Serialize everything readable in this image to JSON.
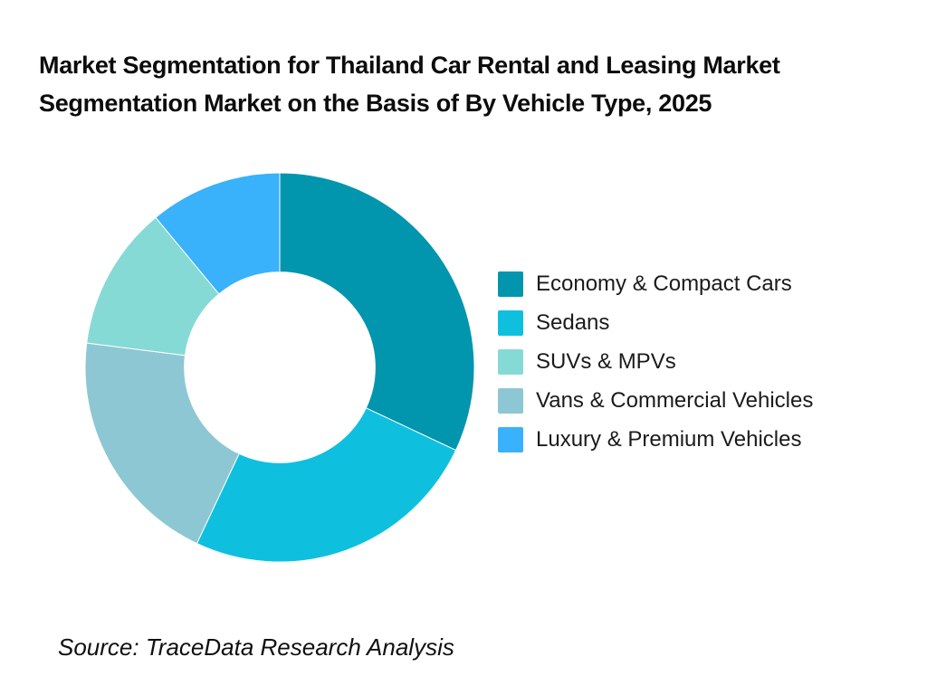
{
  "header": {
    "title_line1": "Market Segmentation for Thailand Car Rental and Leasing Market",
    "title_line2": "Segmentation Market on the Basis of By Vehicle Type, 2025"
  },
  "footer": {
    "source": "Source: TraceData Research Analysis"
  },
  "colors": {
    "background": "#ffffff",
    "title_text": "#0c0c0c",
    "legend_text": "#1b1b1b",
    "slice_divider": "#ffffff"
  },
  "chart_data": {
    "type": "pie",
    "subtype": "donut",
    "title": "Market Segmentation for Thailand Car Rental and Leasing Market Segmentation Market on the Basis of By Vehicle Type, 2025",
    "unit": "percent (estimated from segment angles; no data labels shown)",
    "segments": [
      {
        "label": "Economy & Compact Cars",
        "value": 32,
        "color": "#0295AE"
      },
      {
        "label": "Sedans",
        "value": 25,
        "color": "#0EC0DE"
      },
      {
        "label": "SUVs & MPVs",
        "value": 12,
        "color": "#85DAD6"
      },
      {
        "label": "Vans & Commercial Vehicles",
        "value": 20,
        "color": "#8DC7D3"
      },
      {
        "label": "Luxury & Premium Vehicles",
        "value": 11,
        "color": "#39B1FB"
      }
    ],
    "clockwise_order_from_top": [
      0,
      1,
      3,
      2,
      4
    ],
    "start_angle_deg": 0,
    "inner_radius_ratio": 0.49,
    "grid": false,
    "legend_position": "right"
  }
}
